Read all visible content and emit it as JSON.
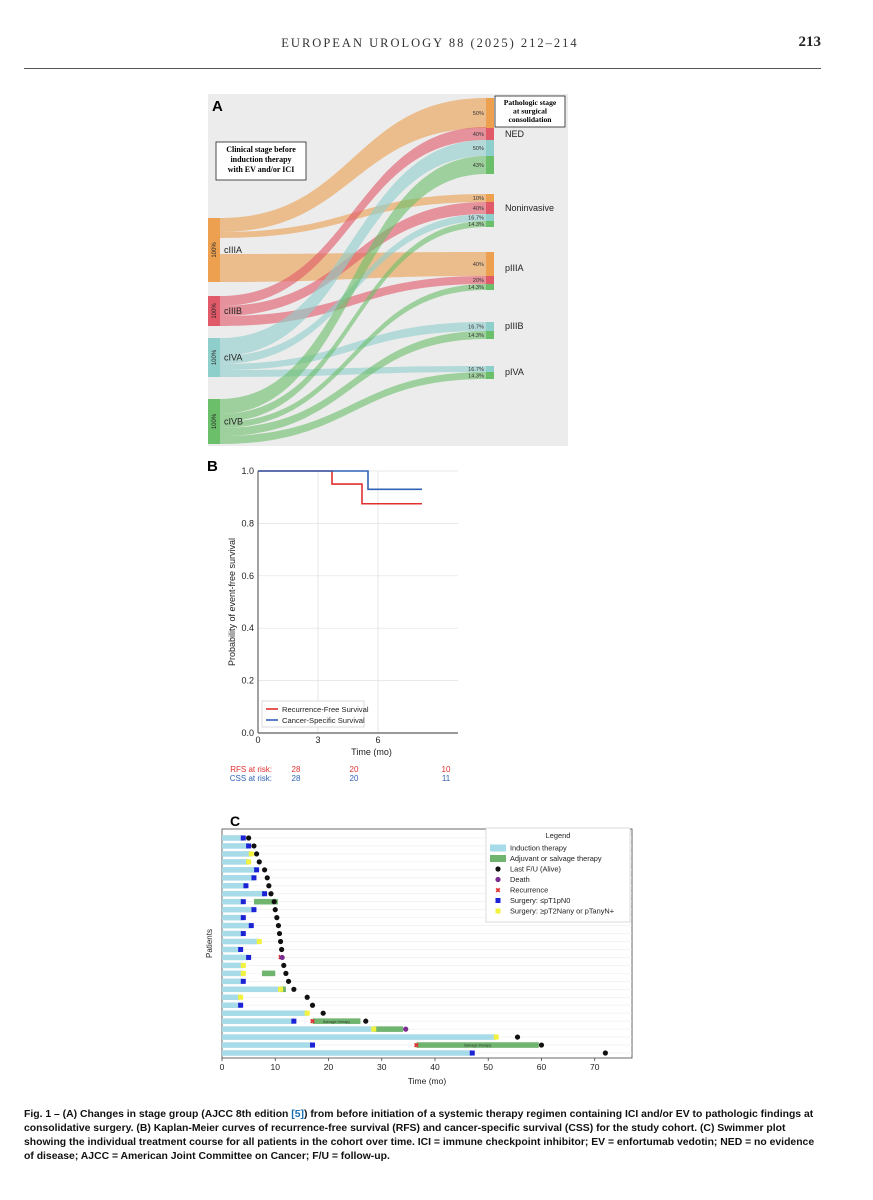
{
  "header": {
    "journal": "EUROPEAN UROLOGY 88 (2025) 212–214",
    "page": "213"
  },
  "panelA": {
    "label": "A",
    "left_box": [
      "Clinical stage before",
      "induction therapy",
      "with EV and/or ICI"
    ],
    "right_box": [
      "Pathologic stage",
      "at surgical",
      "consolidation"
    ],
    "left_nodes": [
      {
        "name": "cIIIA",
        "pct": "100%"
      },
      {
        "name": "cIIIB",
        "pct": "100%"
      },
      {
        "name": "cIVA",
        "pct": "100%"
      },
      {
        "name": "cIVB",
        "pct": "100%"
      }
    ],
    "right_nodes": [
      {
        "name": "NED",
        "pcts": [
          "50%",
          "40%",
          "50%",
          "43%"
        ]
      },
      {
        "name": "Noninvasive",
        "pcts": [
          "10%",
          "40%",
          "16.7%",
          "14.3%"
        ]
      },
      {
        "name": "pIIIA",
        "pcts": [
          "40%",
          "20%",
          "14.3%"
        ]
      },
      {
        "name": "pIIIB",
        "pcts": [
          "16.7%",
          "14.3%"
        ]
      },
      {
        "name": "pIVA",
        "pcts": [
          "16.7%",
          "14.3%"
        ]
      }
    ],
    "colors": {
      "cIIIA": "#eca050",
      "cIIIB": "#e05a6a",
      "cIVA": "#8fcfcb",
      "cIVB": "#6cbf6a"
    }
  },
  "chart_data": [
    {
      "type": "line",
      "title": "B",
      "xlabel": "Time (mo)",
      "ylabel": "Probability of event-free survival",
      "xlim": [
        0,
        10
      ],
      "ylim": [
        0.0,
        1.0
      ],
      "xticks": [
        "0",
        "3",
        "6"
      ],
      "yticks": [
        "0.0",
        "0.2",
        "0.4",
        "0.6",
        "0.8",
        "1.0"
      ],
      "series": [
        {
          "name": "Recurrence-Free Survival",
          "color": "#e03030",
          "steps": [
            [
              0,
              1.0
            ],
            [
              3.7,
              1.0
            ],
            [
              3.7,
              0.95
            ],
            [
              5.2,
              0.95
            ],
            [
              5.2,
              0.875
            ],
            [
              8.2,
              0.875
            ]
          ]
        },
        {
          "name": "Cancer-Specific Survival",
          "color": "#2f63b5",
          "steps": [
            [
              0,
              1.0
            ],
            [
              5.5,
              1.0
            ],
            [
              5.5,
              0.93
            ],
            [
              8.2,
              0.93
            ]
          ]
        }
      ],
      "at_risk": [
        {
          "label": "RFS at risk:",
          "color": "#e03030",
          "values": [
            "28",
            "20",
            "10"
          ]
        },
        {
          "label": "CSS at risk:",
          "color": "#2f63b5",
          "values": [
            "28",
            "20",
            "11"
          ]
        }
      ]
    },
    {
      "type": "bar",
      "title": "C",
      "xlabel": "Time (mo)",
      "ylabel": "Patients",
      "xlim": [
        0,
        77
      ],
      "xticks": [
        "0",
        "10",
        "20",
        "30",
        "40",
        "50",
        "60",
        "70"
      ],
      "legend_title": "Legend",
      "legend": [
        {
          "label": "Induction therapy",
          "kind": "bar",
          "color": "#a8dbe8"
        },
        {
          "label": "Adjuvant or salvage therapy",
          "kind": "bar",
          "color": "#6fb56f"
        },
        {
          "label": "Last F/U (Alive)",
          "kind": "dot",
          "color": "#111111"
        },
        {
          "label": "Death",
          "kind": "dot",
          "color": "#7b2c8f"
        },
        {
          "label": "Recurrence",
          "kind": "x",
          "color": "#e03030"
        },
        {
          "label": "Surgery: ≤pT1pN0",
          "kind": "sq",
          "color": "#1c22d6"
        },
        {
          "label": "Surgery: ≥pT2Nany or pTanyN+",
          "kind": "sq",
          "color": "#f2f23c"
        }
      ],
      "bar_labels": [
        "Salvage therapy",
        "Salvage therapy"
      ],
      "patients": [
        {
          "ind": 4,
          "surg": 4,
          "st": "b",
          "fu": 5
        },
        {
          "ind": 5,
          "surg": 5,
          "st": "b",
          "fu": 6
        },
        {
          "ind": 5.5,
          "surg": 5.5,
          "st": "y",
          "fu": 6.5
        },
        {
          "ind": 5,
          "surg": 5,
          "st": "y",
          "fu": 7
        },
        {
          "ind": 6.5,
          "surg": 6.5,
          "st": "b",
          "fu": 8
        },
        {
          "ind": 6,
          "surg": 6,
          "st": "b",
          "fu": 8.5
        },
        {
          "ind": 4.5,
          "surg": 4.5,
          "st": "b",
          "fu": 8.8
        },
        {
          "ind": 8,
          "surg": 8,
          "st": "b",
          "fu": 9.2
        },
        {
          "ind": 4,
          "surg": 4,
          "st": "b",
          "adj": [
            6,
            10.5
          ],
          "fu": 9.8
        },
        {
          "ind": 6,
          "surg": 6,
          "st": "b",
          "fu": 10
        },
        {
          "ind": 4,
          "surg": 4,
          "st": "b",
          "fu": 10.3
        },
        {
          "ind": 5.5,
          "surg": 5.5,
          "st": "b",
          "fu": 10.6
        },
        {
          "ind": 4,
          "surg": 4,
          "st": "b",
          "fu": 10.8
        },
        {
          "ind": 7,
          "surg": 7,
          "st": "y",
          "fu": 11
        },
        {
          "ind": 3.5,
          "surg": 3.5,
          "st": "b",
          "fu": 11.2
        },
        {
          "ind": 5,
          "surg": 5,
          "st": "b",
          "rec": 11,
          "death": 11.3
        },
        {
          "ind": 4,
          "surg": 4,
          "st": "y",
          "fu": 11.6
        },
        {
          "ind": 4,
          "surg": 4,
          "st": "y",
          "adj": [
            7.5,
            10
          ],
          "fu": 12
        },
        {
          "ind": 4,
          "surg": 4,
          "st": "b",
          "fu": 12.5
        },
        {
          "ind": 11,
          "surg": 11,
          "st": "y",
          "adj": [
            11,
            12
          ],
          "fu": 13.5
        },
        {
          "ind": 3.5,
          "surg": 3.5,
          "st": "y",
          "fu": 16
        },
        {
          "ind": 3.5,
          "surg": 3.5,
          "st": "b",
          "fu": 17
        },
        {
          "ind": 16,
          "surg": 16,
          "st": "y",
          "fu": 19
        },
        {
          "ind": 13.5,
          "surg": 13.5,
          "st": "b",
          "rec": 17,
          "adj": [
            17,
            26
          ],
          "fu": 27,
          "label": 0
        },
        {
          "ind": 28.5,
          "surg": 28.5,
          "st": "y",
          "adj": [
            28.5,
            34
          ],
          "death": 34.5
        },
        {
          "ind": 51.5,
          "surg": 51.5,
          "st": "y",
          "fu": 55.5
        },
        {
          "ind": 17,
          "surg": 17,
          "st": "b",
          "rec": 36.5,
          "adj": [
            36.5,
            59.5
          ],
          "fu": 60,
          "label": 1
        },
        {
          "ind": 47,
          "surg": 47,
          "st": "b",
          "fu": 72
        }
      ]
    }
  ],
  "caption": {
    "lead": "Fig. 1 – (A) Changes in stage group (AJCC 8th edition ",
    "ref": "[5]",
    "rest": ") from before initiation of a systemic therapy regimen containing ICI and/or EV to pathologic findings at consolidative surgery. (B) Kaplan-Meier curves of recurrence-free survival (RFS) and cancer-specific survival (CSS) for the study cohort. (C) Swimmer plot showing the individual treatment course for all patients in the cohort over time. ICI = immune checkpoint inhibitor; EV = enfortumab vedotin; NED = no evidence of disease; AJCC = American Joint Committee on Cancer; F/U = follow-up."
  }
}
